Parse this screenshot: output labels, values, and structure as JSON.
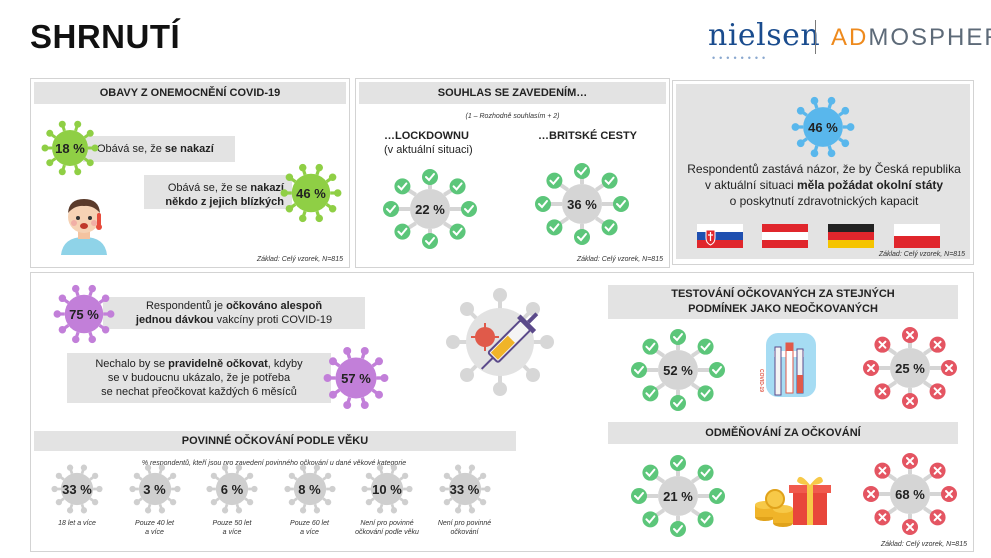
{
  "header": {
    "title": "SHRNUTÍ",
    "logo_nielsen": "nielsen",
    "logo_adm_prefix": "AD",
    "logo_adm_rest": "MOSPHERE"
  },
  "colors": {
    "panel_bar": "#e3e3e3",
    "virus_green": "#8fcf45",
    "virus_purple": "#c27fd9",
    "virus_blue": "#59b7ec",
    "virus_gray": "#cfcfcf",
    "check_green": "#5cc67a",
    "cross_red": "#e45562"
  },
  "fear": {
    "title": "OBAVY Z ONEMOCNĚNÍ COVID-19",
    "infect_value": "18 %",
    "infect_text": "Obává se, že ",
    "infect_bold": "se nakazí",
    "close_value": "46 %",
    "close_text1": "Obává se, že se ",
    "close_bold1": "nakazí",
    "close_bold2": "někdo z jejich blízkých",
    "base": "Základ: Celý vzorek, N=815"
  },
  "agree": {
    "title": "SOUHLAS SE ZAVEDENÍM…",
    "subtitle": "(1 – Rozhodně souhlasím + 2)",
    "lockdown_label": "…LOCKDOWNU",
    "lockdown_sub": "(v aktuální situaci)",
    "lockdown_value": "22 %",
    "british_label": "…BRITSKÉ CESTY",
    "british_value": "36 %",
    "base": "Základ: Celý vzorek, N=815"
  },
  "neighbors": {
    "value": "46 %",
    "text1": "Respondentů zastává názor, že by Česká republika",
    "text2a": "v aktuální situaci ",
    "text2b": "měla požádat okolní státy",
    "text3": "o poskytnutí zdravotnických kapacit",
    "base": "Základ: Celý vzorek, N=815"
  },
  "vaccinated": {
    "value": "75 %",
    "text1a": "Respondentů je ",
    "text1b": "očkováno alespoň",
    "text2a": "jednou dávkou",
    "text2b": " vakcíny proti COVID-19"
  },
  "regular": {
    "value": "57 %",
    "text1a": "Nechalo by se ",
    "text1b": "pravidelně očkovat",
    "text1c": ", kdyby",
    "text2": "se v budoucnu ukázalo, že je potřeba",
    "text3": "se nechat přeočkovat každých 6 měsíců"
  },
  "mandatory": {
    "title": "POVINNÉ OČKOVÁNÍ PODLE VĚKU",
    "subtitle": "% respondentů, kteří jsou pro zavedení povinného očkování u dané věkové kategorie",
    "items": [
      {
        "value": "33 %",
        "label1": "18 let a více",
        "label2": ""
      },
      {
        "value": "3 %",
        "label1": "Pouze 40 let",
        "label2": "a více"
      },
      {
        "value": "6 %",
        "label1": "Pouze 50 let",
        "label2": "a více"
      },
      {
        "value": "8 %",
        "label1": "Pouze 60 let",
        "label2": "a více"
      },
      {
        "value": "10 %",
        "label1": "Není pro povinné",
        "label2": "očkování podle věku"
      },
      {
        "value": "33 %",
        "label1": "Není pro povinné",
        "label2": "očkování"
      }
    ]
  },
  "testing": {
    "title1": "TESTOVÁNÍ OČKOVANÝCH ZA STEJNÝCH",
    "title2": "PODMÍNEK JAKO NEOČKOVANÝCH",
    "yes_value": "52 %",
    "no_value": "25 %",
    "tube_label": "COVID-19"
  },
  "reward": {
    "title": "ODMĚŇOVÁNÍ ZA OČKOVÁNÍ",
    "yes_value": "21 %",
    "no_value": "68 %",
    "base": "Základ: Celý vzorek, N=815"
  }
}
